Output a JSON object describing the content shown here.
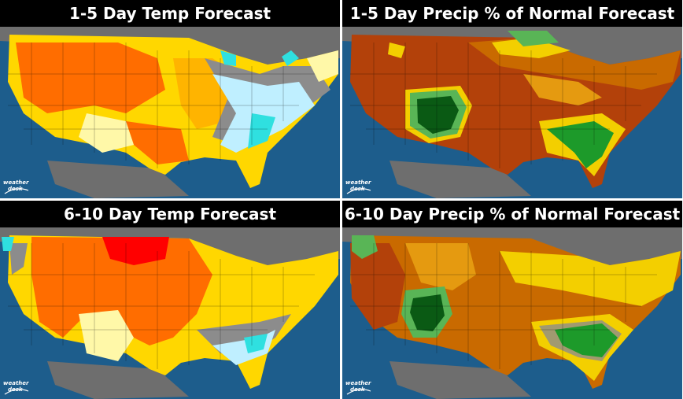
{
  "panels": [
    {
      "title": "1-5 Day Temp Forecast",
      "logo_line1": "weather",
      "logo_line2": "desk"
    },
    {
      "title": "1-5 Day Precip % of Normal Forecast",
      "logo_line1": "weather",
      "logo_line2": "desk"
    },
    {
      "title": "6-10 Day Temp Forecast",
      "logo_line1": "weather",
      "logo_line2": "desk"
    },
    {
      "title": "6-10 Day Precip % of Normal Forecast",
      "logo_line1": "weather",
      "logo_line2": "desk"
    }
  ],
  "colors": {
    "ocean": "#1d5d8c",
    "land_outside": "#6e6e6e",
    "temp_red": "#ff0000",
    "temp_orange": "#ff6d00",
    "temp_light_orange": "#ffb000",
    "temp_yellow": "#ffd700",
    "temp_pale_yellow": "#fff8a8",
    "temp_neutral": "#8c8c8c",
    "temp_light_blue": "#bfefff",
    "temp_cyan": "#2fe0e0",
    "precip_dark_brown": "#b3410a",
    "precip_brown": "#c96a00",
    "precip_orange": "#e59a10",
    "precip_yellow": "#f3cf00",
    "precip_light_green": "#59b556",
    "precip_green": "#1d9a2a",
    "precip_dark_green": "#0a5a14"
  }
}
